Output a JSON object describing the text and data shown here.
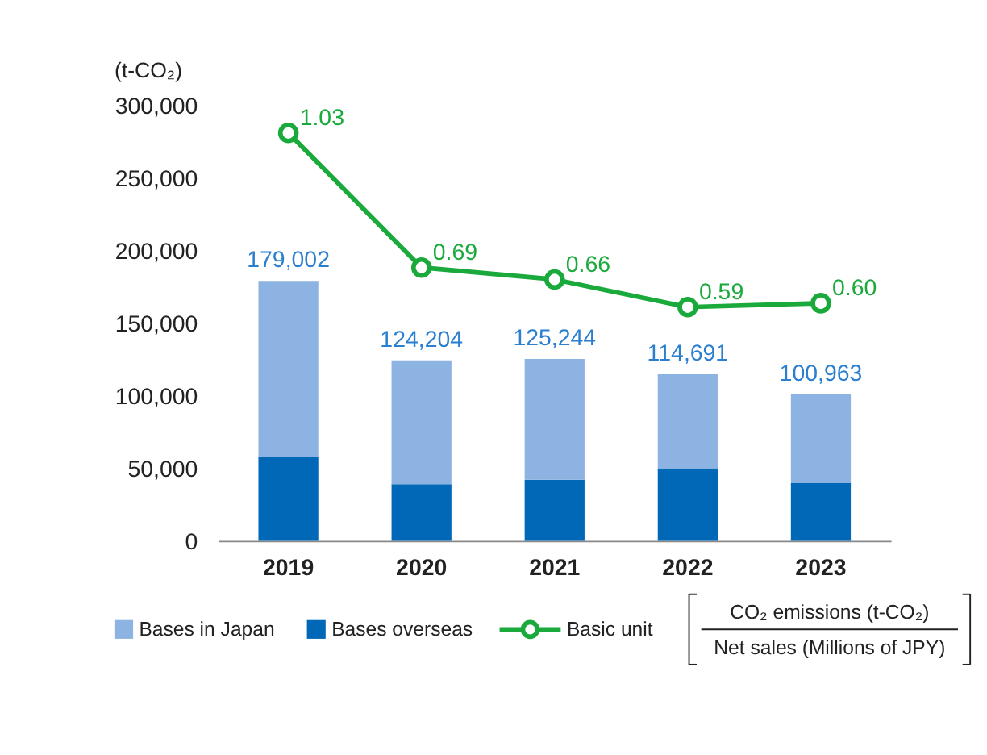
{
  "chart_data": {
    "type": "bar",
    "stacked": true,
    "ylabel": "(t-CO₂)",
    "categories": [
      "2019",
      "2020",
      "2021",
      "2022",
      "2023"
    ],
    "ylim": [
      0,
      300000
    ],
    "yticks": [
      {
        "value": 0,
        "label": "0"
      },
      {
        "value": 50000,
        "label": "50,000"
      },
      {
        "value": 100000,
        "label": "100,000"
      },
      {
        "value": 150000,
        "label": "150,000"
      },
      {
        "value": 200000,
        "label": "200,000"
      },
      {
        "value": 250000,
        "label": "250,000"
      },
      {
        "value": 300000,
        "label": "300,000"
      }
    ],
    "series": [
      {
        "name": "Bases overseas",
        "color": "#0068b7",
        "values": [
          58000,
          39000,
          42000,
          50000,
          40000
        ]
      },
      {
        "name": "Bases in Japan",
        "color": "#8db3e2",
        "values": [
          121002,
          85204,
          83244,
          64691,
          60963
        ]
      },
      {
        "name": "Basic unit",
        "type": "line",
        "axis": "y2",
        "color": "#1aaa3c",
        "marker": "circle",
        "values": [
          1.03,
          0.69,
          0.66,
          0.59,
          0.6
        ],
        "value_labels": [
          "1.03",
          "0.69",
          "0.66",
          "0.59",
          "0.60"
        ]
      }
    ],
    "totals": [
      "179,002",
      "124,204",
      "125,244",
      "114,691",
      "100,963"
    ],
    "legend": "bottom",
    "grid": false,
    "annotations": [
      "CO₂ emissions (t-CO₂)",
      "Net sales (Millions of JPY)"
    ]
  }
}
